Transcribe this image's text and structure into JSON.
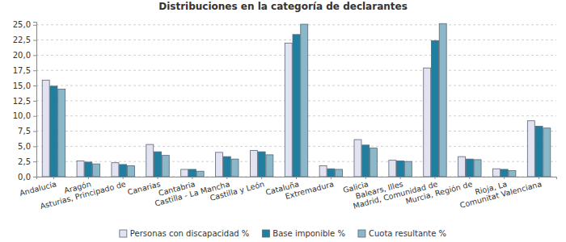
{
  "chart_data": {
    "type": "bar",
    "title": "Distribuciones en la categoría de declarantes",
    "categories": [
      "Andalucía",
      "Aragón",
      "Asturias, Principado de",
      "Canarias",
      "Cantabria",
      "Castilla - La Mancha",
      "Castilla y León",
      "Cataluña",
      "Extremadura",
      "Galicia",
      "Balears, Illes",
      "Madrid, Comunidad de",
      "Murcia, Región de",
      "Rioja, La",
      "Comunitat Valenciana"
    ],
    "series": [
      {
        "name": "Personas con discapacidad %",
        "color": "#e2e2f0",
        "values": [
          15.9,
          2.6,
          2.3,
          5.3,
          1.2,
          4.0,
          4.3,
          22.0,
          1.8,
          6.1,
          2.7,
          17.9,
          3.3,
          1.3,
          9.2
        ]
      },
      {
        "name": "Base imponible %",
        "color": "#1f7fa1",
        "values": [
          14.9,
          2.4,
          2.0,
          4.1,
          1.2,
          3.3,
          4.1,
          23.4,
          1.3,
          5.2,
          2.6,
          22.4,
          2.9,
          1.2,
          8.3
        ]
      },
      {
        "name": "Cuota resultante %",
        "color": "#8bb8c8",
        "values": [
          14.4,
          2.1,
          1.8,
          3.5,
          0.9,
          2.9,
          3.6,
          25.1,
          1.2,
          4.7,
          2.5,
          25.2,
          2.8,
          1.0,
          8.0
        ]
      }
    ],
    "ylim": [
      0,
      25.5
    ],
    "yticks": [
      {
        "value": 0,
        "label": "0,0"
      },
      {
        "value": 2.5,
        "label": "2,5"
      },
      {
        "value": 5,
        "label": "5,0"
      },
      {
        "value": 7.5,
        "label": "7,5"
      },
      {
        "value": 10,
        "label": "10,0"
      },
      {
        "value": 12.5,
        "label": "12,5"
      },
      {
        "value": 15,
        "label": "15,0"
      },
      {
        "value": 17.5,
        "label": "17,5"
      },
      {
        "value": 20,
        "label": "20,0"
      },
      {
        "value": 22.5,
        "label": "22,5"
      },
      {
        "value": 25,
        "label": "25,0"
      }
    ],
    "grid": true,
    "legend": "bottom"
  }
}
